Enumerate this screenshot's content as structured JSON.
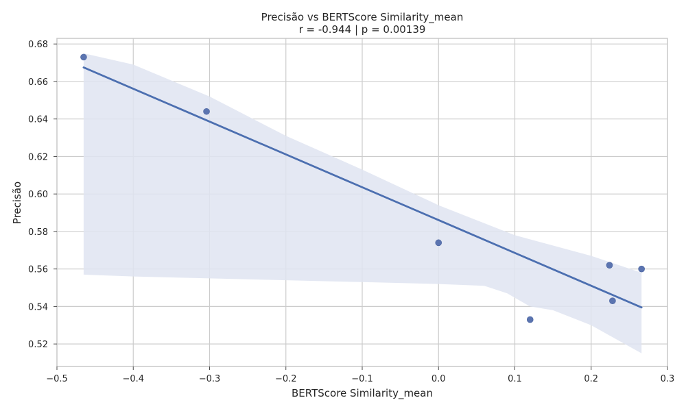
{
  "chart_data": {
    "type": "scatter",
    "title": "Precisão vs BERTScore Similarity_mean",
    "subtitle": "r = -0.944  |  p = 0.00139",
    "xlabel": "BERTScore Similarity_mean",
    "ylabel": "Precisão",
    "xlim": [
      -0.5,
      0.3
    ],
    "ylim": [
      0.508,
      0.683
    ],
    "xticks": [
      -0.5,
      -0.4,
      -0.3,
      -0.2,
      -0.1,
      0.0,
      0.1,
      0.2,
      0.3
    ],
    "xtick_labels": [
      "−0.5",
      "−0.4",
      "−0.3",
      "−0.2",
      "−0.1",
      "0.0",
      "0.1",
      "0.2",
      "0.3"
    ],
    "yticks": [
      0.52,
      0.54,
      0.56,
      0.58,
      0.6,
      0.62,
      0.64,
      0.66,
      0.68
    ],
    "ytick_labels": [
      "0.52",
      "0.54",
      "0.56",
      "0.58",
      "0.60",
      "0.62",
      "0.64",
      "0.66",
      "0.68"
    ],
    "grid": true,
    "points": [
      {
        "x": -0.465,
        "y": 0.673
      },
      {
        "x": -0.304,
        "y": 0.644
      },
      {
        "x": 0.0,
        "y": 0.574
      },
      {
        "x": 0.12,
        "y": 0.533
      },
      {
        "x": 0.224,
        "y": 0.562
      },
      {
        "x": 0.228,
        "y": 0.543
      },
      {
        "x": 0.266,
        "y": 0.56
      }
    ],
    "regression_line": [
      {
        "x": -0.465,
        "y": 0.6675
      },
      {
        "x": 0.266,
        "y": 0.5395
      }
    ],
    "confidence_band": {
      "upper": [
        {
          "x": -0.465,
          "y": 0.675
        },
        {
          "x": -0.4,
          "y": 0.669
        },
        {
          "x": -0.3,
          "y": 0.652
        },
        {
          "x": -0.2,
          "y": 0.631
        },
        {
          "x": -0.1,
          "y": 0.613
        },
        {
          "x": 0.0,
          "y": 0.594
        },
        {
          "x": 0.1,
          "y": 0.578
        },
        {
          "x": 0.2,
          "y": 0.567
        },
        {
          "x": 0.266,
          "y": 0.558
        }
      ],
      "lower": [
        {
          "x": -0.465,
          "y": 0.557
        },
        {
          "x": -0.4,
          "y": 0.556
        },
        {
          "x": -0.3,
          "y": 0.555
        },
        {
          "x": -0.2,
          "y": 0.554
        },
        {
          "x": -0.1,
          "y": 0.553
        },
        {
          "x": 0.0,
          "y": 0.552
        },
        {
          "x": 0.06,
          "y": 0.551
        },
        {
          "x": 0.09,
          "y": 0.547
        },
        {
          "x": 0.12,
          "y": 0.54
        },
        {
          "x": 0.15,
          "y": 0.538
        },
        {
          "x": 0.2,
          "y": 0.53
        },
        {
          "x": 0.266,
          "y": 0.515
        }
      ]
    },
    "colors": {
      "points": "#5b74b0",
      "line": "#4c6fb0",
      "band": "#dfe4f1"
    }
  }
}
